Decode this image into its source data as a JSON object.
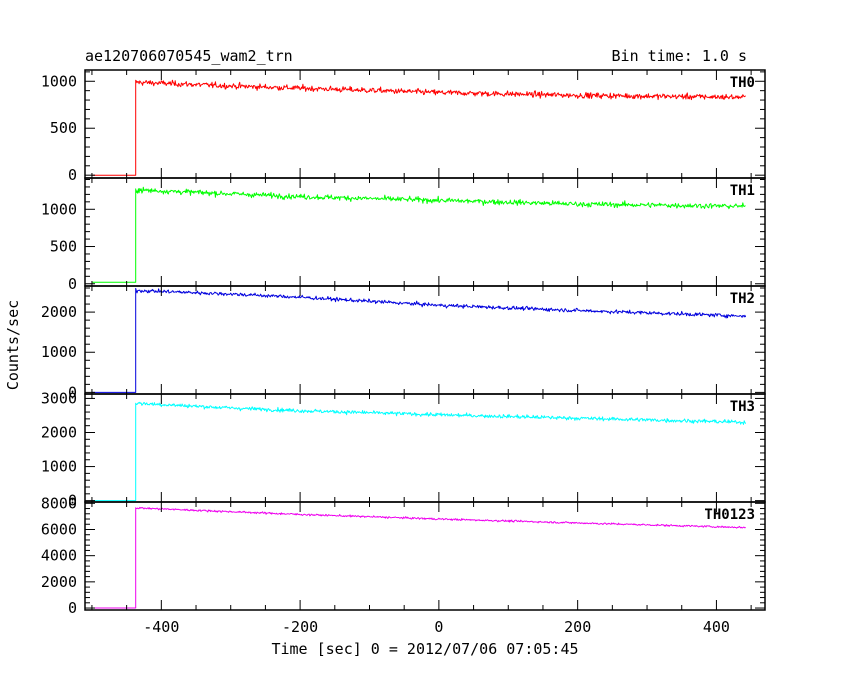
{
  "header": {
    "left_title": "ae120706070545_wam2_trn",
    "right_title": "Bin time: 1.0 s"
  },
  "chart_data": {
    "type": "line",
    "xlabel": "Time [sec] 0 = 2012/07/06 07:05:45",
    "ylabel": "Counts/sec",
    "xlim": [
      -510,
      470
    ],
    "xticks": [
      -400,
      -200,
      0,
      200,
      400
    ],
    "x_start": -500,
    "x_end": 442,
    "onset_x": -437,
    "grid": false,
    "panels": [
      {
        "name": "TH0",
        "color": "#ff0000",
        "ylim": [
          -30,
          1120
        ],
        "yticks": [
          0,
          500,
          1000
        ],
        "tick_labels": [
          "0",
          "500",
          "1000"
        ],
        "pre_onset": 0,
        "trend": [
          [
            -437,
            990
          ],
          [
            -300,
            950
          ],
          [
            0,
            880
          ],
          [
            200,
            850
          ],
          [
            442,
            830
          ]
        ],
        "noise": 30
      },
      {
        "name": "TH1",
        "color": "#00ff00",
        "ylim": [
          -30,
          1420
        ],
        "yticks": [
          0,
          500,
          1000
        ],
        "tick_labels": [
          "0",
          "500",
          "1000"
        ],
        "pre_onset": 20,
        "trend": [
          [
            -437,
            1260
          ],
          [
            -200,
            1170
          ],
          [
            0,
            1120
          ],
          [
            200,
            1070
          ],
          [
            442,
            1040
          ]
        ],
        "noise": 35
      },
      {
        "name": "TH2",
        "color": "#0000dd",
        "ylim": [
          -40,
          2650
        ],
        "yticks": [
          0,
          1000,
          2000
        ],
        "tick_labels": [
          "0",
          "1000",
          "2000"
        ],
        "pre_onset": 0,
        "trend": [
          [
            -437,
            2540
          ],
          [
            -300,
            2450
          ],
          [
            -200,
            2370
          ],
          [
            0,
            2170
          ],
          [
            200,
            2040
          ],
          [
            442,
            1900
          ]
        ],
        "noise": 45
      },
      {
        "name": "TH3",
        "color": "#00ffff",
        "ylim": [
          -40,
          3130
        ],
        "yticks": [
          0,
          1000,
          2000,
          3000
        ],
        "tick_labels": [
          "0",
          "1000",
          "2000",
          "3000"
        ],
        "pre_onset": 0,
        "trend": [
          [
            -437,
            2860
          ],
          [
            -300,
            2720
          ],
          [
            -200,
            2640
          ],
          [
            0,
            2520
          ],
          [
            200,
            2420
          ],
          [
            442,
            2300
          ]
        ],
        "noise": 55
      },
      {
        "name": "TH0123",
        "color": "#ee00ee",
        "ylim": [
          -150,
          8100
        ],
        "yticks": [
          0,
          2000,
          4000,
          6000,
          8000
        ],
        "tick_labels": [
          "0",
          "2000",
          "4000",
          "6000",
          "8000"
        ],
        "pre_onset": 0,
        "trend": [
          [
            -437,
            7650
          ],
          [
            -200,
            7150
          ],
          [
            0,
            6800
          ],
          [
            200,
            6500
          ],
          [
            442,
            6150
          ]
        ],
        "noise": 70
      }
    ]
  }
}
